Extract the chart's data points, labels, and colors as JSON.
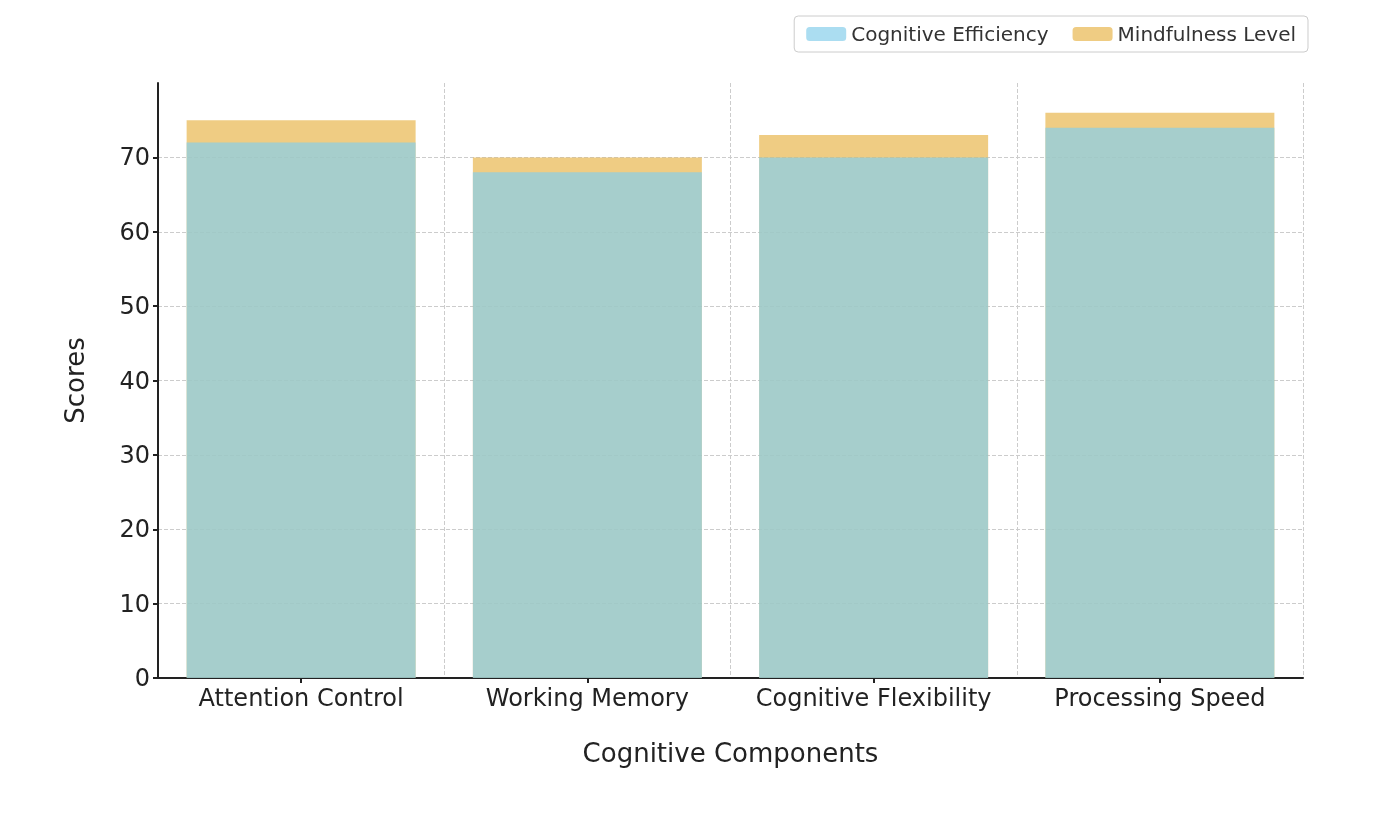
{
  "chart_data": {
    "type": "bar",
    "xlabel": "Cognitive Components",
    "ylabel": "Scores",
    "categories": [
      "Attention Control",
      "Working Memory",
      "Cognitive Flexibility",
      "Processing Speed"
    ],
    "series": [
      {
        "name": "Cognitive Efficiency",
        "color": "#87ceeb",
        "values": [
          72,
          68,
          70,
          74
        ]
      },
      {
        "name": "Mindfulness Level",
        "color": "#e8b64f",
        "values": [
          75,
          70,
          73,
          76
        ]
      }
    ],
    "ylim": [
      0,
      80
    ],
    "yticks": [
      0,
      10,
      20,
      30,
      40,
      50,
      60,
      70
    ],
    "grid": true,
    "legend": "top right"
  }
}
